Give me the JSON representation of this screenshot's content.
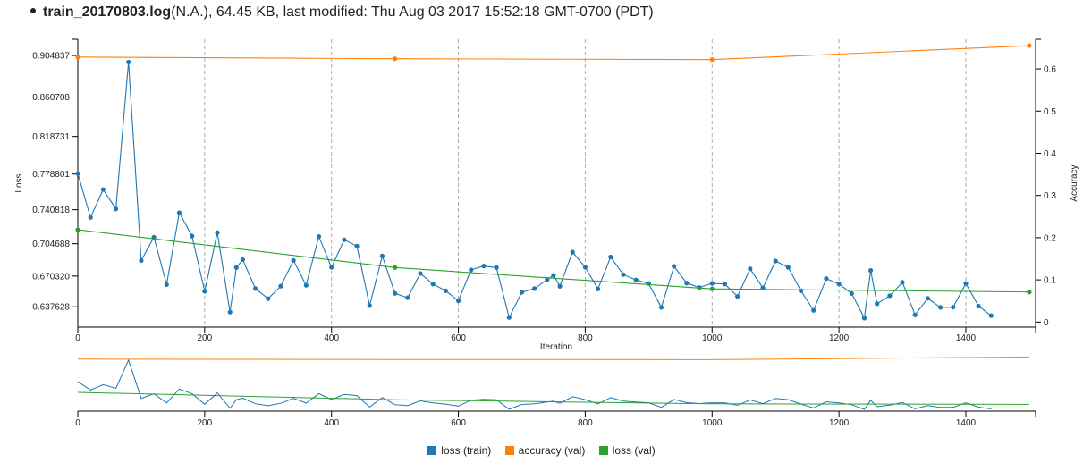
{
  "header": {
    "filename": "train_20170803.log",
    "details": "(N.A.), 64.45 KB, last modified: Thu Aug 03 2017 15:52:18 GMT-0700 (PDT)"
  },
  "colors": {
    "loss_train": "#1f77b4",
    "accuracy_val": "#ff7f0e",
    "loss_val": "#2ca02c"
  },
  "legend": [
    {
      "label": "loss (train)",
      "color": "#1f77b4"
    },
    {
      "label": "accuracy (val)",
      "color": "#ff7f0e"
    },
    {
      "label": "loss (val)",
      "color": "#2ca02c"
    }
  ],
  "chart_data": {
    "type": "line",
    "xlabel": "Iteration",
    "ylabel": "Loss",
    "y2label": "Accuracy",
    "xlim": [
      0,
      1510
    ],
    "ylim": [
      0.616,
      0.922
    ],
    "y2lim": [
      -0.012,
      0.67
    ],
    "x_ticks": [
      "0",
      "200",
      "400",
      "600",
      "800",
      "1000",
      "1200",
      "1400"
    ],
    "x_tick_values": [
      0,
      200,
      400,
      600,
      800,
      1000,
      1200,
      1400
    ],
    "y_ticks": [
      "0.637628",
      "0.670320",
      "0.704688",
      "0.740818",
      "0.778801",
      "0.818731",
      "0.860708",
      "0.904837"
    ],
    "y_tick_values": [
      0.637628,
      0.67032,
      0.704688,
      0.740818,
      0.778801,
      0.818731,
      0.860708,
      0.904837
    ],
    "y2_ticks": [
      "0",
      "0.1",
      "0.2",
      "0.3",
      "0.4",
      "0.5",
      "0.6"
    ],
    "y2_tick_values": [
      0,
      0.1,
      0.2,
      0.3,
      0.4,
      0.5,
      0.6
    ],
    "vertical_grid": true,
    "legend_position": "bottom",
    "series": [
      {
        "name": "loss (train)",
        "axis": "left",
        "x": [
          0,
          20,
          40,
          60,
          80,
          100,
          120,
          140,
          160,
          180,
          200,
          220,
          240,
          250,
          260,
          280,
          300,
          320,
          340,
          360,
          380,
          400,
          420,
          440,
          460,
          480,
          500,
          520,
          540,
          560,
          580,
          600,
          620,
          640,
          660,
          680,
          700,
          720,
          740,
          750,
          760,
          780,
          800,
          820,
          840,
          860,
          880,
          900,
          920,
          940,
          960,
          980,
          1000,
          1020,
          1040,
          1060,
          1080,
          1100,
          1120,
          1140,
          1160,
          1180,
          1200,
          1220,
          1240,
          1250,
          1260,
          1280,
          1300,
          1320,
          1340,
          1360,
          1380,
          1400,
          1420,
          1440
        ],
        "y": [
          0.7794,
          0.7326,
          0.7623,
          0.7417,
          0.8978,
          0.6868,
          0.7117,
          0.6612,
          0.7377,
          0.7128,
          0.6541,
          0.7165,
          0.632,
          0.6794,
          0.6878,
          0.657,
          0.6462,
          0.6596,
          0.6869,
          0.6605,
          0.7124,
          0.6795,
          0.7089,
          0.7021,
          0.6389,
          0.6917,
          0.6519,
          0.6473,
          0.673,
          0.6618,
          0.6546,
          0.644,
          0.6769,
          0.681,
          0.6793,
          0.6263,
          0.653,
          0.657,
          0.6666,
          0.6712,
          0.6595,
          0.6958,
          0.6797,
          0.6566,
          0.6906,
          0.6719,
          0.6662,
          0.6624,
          0.637,
          0.6807,
          0.6628,
          0.6581,
          0.6626,
          0.6618,
          0.6486,
          0.678,
          0.6577,
          0.6863,
          0.6795,
          0.6546,
          0.6338,
          0.6676,
          0.6619,
          0.6518,
          0.6256,
          0.6763,
          0.6408,
          0.6493,
          0.6637,
          0.629,
          0.6466,
          0.637,
          0.6372,
          0.6625,
          0.6383,
          0.6282
        ]
      },
      {
        "name": "accuracy (val)",
        "axis": "right",
        "x": [
          0,
          500,
          1000,
          1500
        ],
        "y": [
          0.628,
          0.624,
          0.622,
          0.655
        ]
      },
      {
        "name": "loss (val)",
        "axis": "left",
        "x": [
          0,
          500,
          1000,
          1500
        ],
        "y": [
          0.7196,
          0.6794,
          0.6567,
          0.6533
        ]
      }
    ]
  }
}
